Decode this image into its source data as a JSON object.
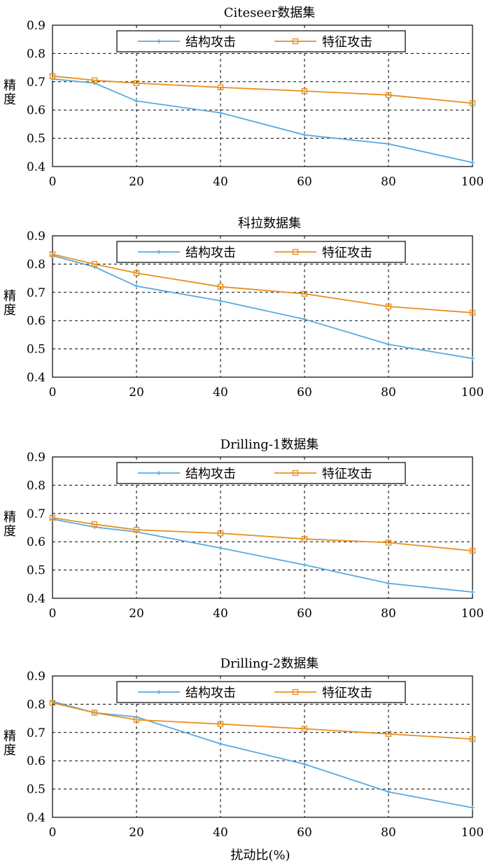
{
  "figure": {
    "xlabel": "扰动比(%)"
  },
  "colors": {
    "structure": "#5aa9dc",
    "feature": "#e8901e"
  },
  "chart_data": [
    {
      "type": "line",
      "title": "Citeseer数据集",
      "ylabel": "精度",
      "xlim": [
        0,
        100
      ],
      "ylim": [
        0.4,
        0.9
      ],
      "xticks": [
        0,
        20,
        40,
        60,
        80,
        100
      ],
      "yticks": [
        0.4,
        0.5,
        0.6,
        0.7,
        0.8,
        0.9
      ],
      "grid": true,
      "legend_position": "top-right",
      "series": [
        {
          "name": "结构攻击",
          "x": [
            0,
            10,
            20,
            40,
            60,
            80,
            100
          ],
          "y": [
            0.71,
            0.695,
            0.632,
            0.59,
            0.512,
            0.48,
            0.414
          ]
        },
        {
          "name": "特征攻击",
          "x": [
            0,
            10,
            20,
            40,
            60,
            80,
            100
          ],
          "y": [
            0.72,
            0.705,
            0.695,
            0.68,
            0.667,
            0.653,
            0.624
          ]
        }
      ]
    },
    {
      "type": "line",
      "title": "科拉数据集",
      "ylabel": "精度",
      "xlim": [
        0,
        100
      ],
      "ylim": [
        0.4,
        0.9
      ],
      "xticks": [
        0,
        20,
        40,
        60,
        80,
        100
      ],
      "yticks": [
        0.4,
        0.5,
        0.6,
        0.7,
        0.8,
        0.9
      ],
      "grid": true,
      "legend_position": "top-right",
      "series": [
        {
          "name": "结构攻击",
          "x": [
            0,
            10,
            20,
            40,
            60,
            80,
            100
          ],
          "y": [
            0.83,
            0.79,
            0.722,
            0.67,
            0.605,
            0.516,
            0.466
          ]
        },
        {
          "name": "特征攻击",
          "x": [
            0,
            10,
            20,
            40,
            60,
            80,
            100
          ],
          "y": [
            0.835,
            0.8,
            0.768,
            0.72,
            0.695,
            0.65,
            0.628
          ]
        }
      ]
    },
    {
      "type": "line",
      "title": "Drilling-1数据集",
      "ylabel": "精度",
      "xlim": [
        0,
        100
      ],
      "ylim": [
        0.4,
        0.9
      ],
      "xticks": [
        0,
        20,
        40,
        60,
        80,
        100
      ],
      "yticks": [
        0.4,
        0.5,
        0.6,
        0.7,
        0.8,
        0.9
      ],
      "grid": true,
      "legend_position": "top-right",
      "series": [
        {
          "name": "结构攻击",
          "x": [
            0,
            10,
            20,
            40,
            60,
            80,
            100
          ],
          "y": [
            0.68,
            0.652,
            0.635,
            0.578,
            0.518,
            0.453,
            0.422
          ]
        },
        {
          "name": "特征攻击",
          "x": [
            0,
            10,
            20,
            40,
            60,
            80,
            100
          ],
          "y": [
            0.685,
            0.662,
            0.642,
            0.63,
            0.61,
            0.597,
            0.568
          ]
        }
      ]
    },
    {
      "type": "line",
      "title": "Drilling-2数据集",
      "ylabel": "精度",
      "xlim": [
        0,
        100
      ],
      "ylim": [
        0.4,
        0.9
      ],
      "xticks": [
        0,
        20,
        40,
        60,
        80,
        100
      ],
      "yticks": [
        0.4,
        0.5,
        0.6,
        0.7,
        0.8,
        0.9
      ],
      "grid": true,
      "legend_position": "top-right",
      "series": [
        {
          "name": "结构攻击",
          "x": [
            0,
            10,
            20,
            40,
            60,
            80,
            100
          ],
          "y": [
            0.81,
            0.77,
            0.755,
            0.66,
            0.588,
            0.49,
            0.434
          ]
        },
        {
          "name": "特征攻击",
          "x": [
            0,
            10,
            20,
            40,
            60,
            80,
            100
          ],
          "y": [
            0.805,
            0.77,
            0.745,
            0.73,
            0.713,
            0.695,
            0.677
          ]
        }
      ]
    }
  ]
}
